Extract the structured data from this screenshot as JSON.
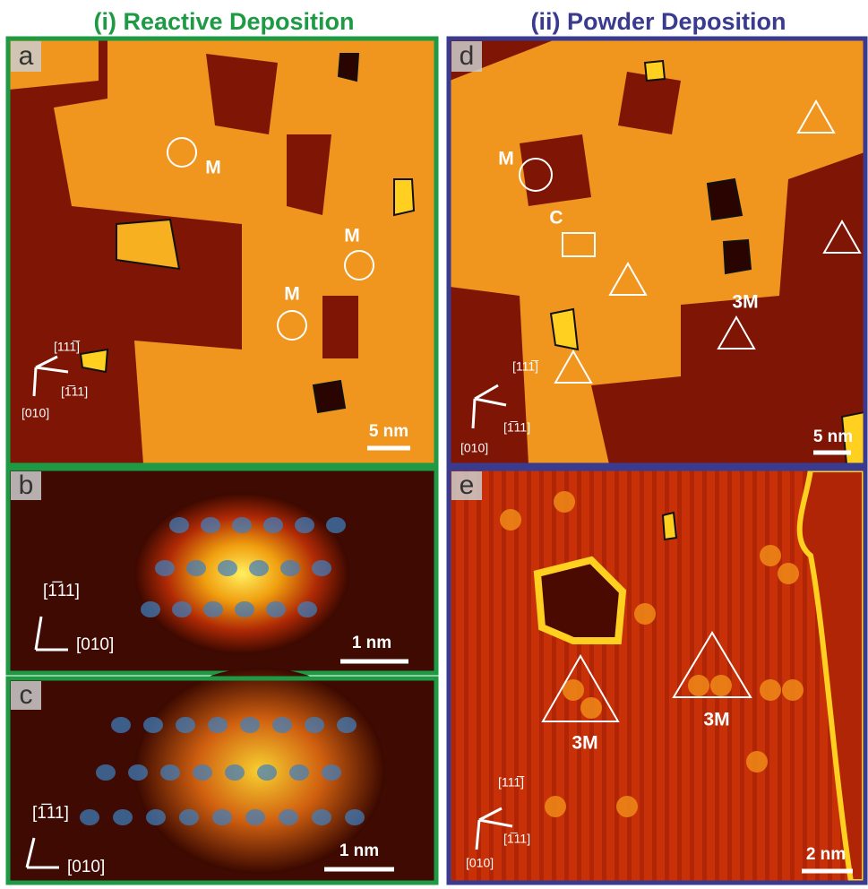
{
  "titles": [
    "(i) Reactive Deposition",
    "(ii) Powder Deposition"
  ],
  "panels": [
    {
      "label": "a",
      "annotations": [
        "M",
        "M",
        "M"
      ],
      "directions": [
        "[111̅]",
        "[1̅11]",
        "[010]"
      ],
      "scale_bar": "5 nm"
    },
    {
      "label": "b",
      "directions": [
        "[1̅11]",
        "[010]"
      ],
      "scale_bar": "1 nm"
    },
    {
      "label": "c",
      "directions": [
        "[1̅11]",
        "[010]"
      ],
      "scale_bar": "1 nm"
    },
    {
      "label": "d",
      "annotations": [
        "M",
        "C",
        "3M"
      ],
      "directions": [
        "[111̅]",
        "[1̅11]",
        "[010]"
      ],
      "scale_bar": "5 nm"
    },
    {
      "label": "e",
      "annotations": [
        "3M",
        "3M"
      ],
      "directions": [
        "[111̅]",
        "[1̅11]",
        "[010]"
      ],
      "scale_bar": "2 nm"
    }
  ]
}
